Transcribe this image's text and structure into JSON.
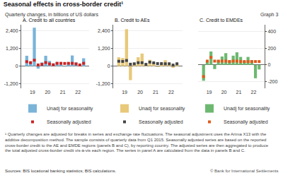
{
  "title": "Seasonal effects in cross-border credit¹",
  "subtitle": "Quarterly changes, in billions of US dollars",
  "annotations": [
    "Graph 3",
    "¹ Quarterly changes are adjusted for breaks in series and exchange rate fluctuations. The seasonal adjustment uses the Arima X13 with the additive decomposition method. The sample consists of quarterly data from Q1 2015. Seasonally adjusted series are based on the reported cross-border credit to the AE and EMDE regions (panels B and C), by reporting country. The adjusted series are then aggregated to produce the total adjusted cross-border credit vis-à-vis each region. The series in panel A are calculated from the data in panels B and C.",
    "Sources: BIS locational banking statistics; BIS calculations.",
    "© Bank for International Settlements"
  ],
  "chart_data": [
    {
      "type": "bar",
      "title": "A. Credit to all countries",
      "categories": [
        "19",
        null,
        null,
        null,
        "20",
        null,
        null,
        null,
        "21",
        null,
        null,
        null,
        "22",
        null,
        null,
        null
      ],
      "series": [
        {
          "name": "Unadj for seasonality",
          "type": "bar",
          "color": "#7ab4d8",
          "values": [
            700,
            330,
            2600,
            -170,
            250,
            700,
            350,
            180,
            280,
            130,
            -30,
            220,
            720,
            250,
            100,
            530
          ]
        },
        {
          "name": "Seasonally adjusted",
          "type": "scatter",
          "marker": "square",
          "color": "#cc2222",
          "values": [
            300,
            230,
            400,
            80,
            120,
            240,
            150,
            90,
            190,
            190,
            180,
            190,
            190,
            150,
            80,
            190
          ]
        }
      ],
      "ylim": [
        -1500,
        2800
      ],
      "yticks": [
        {
          "value": -1200,
          "label": "-1,200"
        },
        0,
        {
          "value": 1200,
          "label": "1,200"
        },
        {
          "value": 2400,
          "label": "2,400"
        }
      ],
      "grid": true,
      "legend": "bottom"
    },
    {
      "type": "bar",
      "title": "B. Credit to AEs",
      "categories": [
        "19",
        null,
        null,
        null,
        "20",
        null,
        null,
        null,
        "21",
        null,
        null,
        null,
        "22",
        null,
        null,
        null
      ],
      "series": [
        {
          "name": "Unadj for seasonality",
          "type": "bar",
          "color": "#e8c97a",
          "values": [
            600,
            550,
            2500,
            -950,
            200,
            600,
            850,
            120,
            430,
            180,
            -60,
            180,
            400,
            200,
            -120,
            180
          ]
        },
        {
          "name": "Seasonally adjusted",
          "type": "scatter",
          "marker": "square",
          "color": "#444444",
          "values": [
            330,
            320,
            380,
            130,
            160,
            230,
            230,
            120,
            270,
            220,
            170,
            170,
            160,
            160,
            70,
            160
          ]
        }
      ],
      "ylim": [
        -1500,
        2800
      ],
      "yticks": [
        {
          "value": -1200,
          "label": "-1,200"
        },
        0,
        {
          "value": 1200,
          "label": "1,200"
        },
        {
          "value": 2400,
          "label": "2,400"
        }
      ],
      "grid": true,
      "legend": "bottom"
    },
    {
      "type": "bar",
      "title": "C. Credit to EMDEs",
      "categories": [
        "19",
        null,
        null,
        null,
        "20",
        null,
        null,
        null,
        "21",
        null,
        null,
        null,
        "22",
        null,
        null,
        null
      ],
      "series": [
        {
          "name": "Unadj for seasonality",
          "type": "bar",
          "color": "#6db870",
          "values": [
            -190,
            40,
            160,
            -50,
            55,
            100,
            140,
            55,
            110,
            150,
            95,
            45,
            95,
            55,
            -160,
            -55
          ]
        },
        {
          "name": "Seasonally adjusted",
          "type": "scatter",
          "marker": "square",
          "color": "#e05a1a",
          "values": [
            -140,
            45,
            90,
            45,
            45,
            45,
            45,
            40,
            45,
            45,
            40,
            40,
            40,
            40,
            40,
            40
          ]
        }
      ],
      "ylim": [
        -280,
        480
      ],
      "yticks": [
        -200,
        0,
        200,
        400
      ],
      "grid": true,
      "legend": "bottom"
    }
  ]
}
